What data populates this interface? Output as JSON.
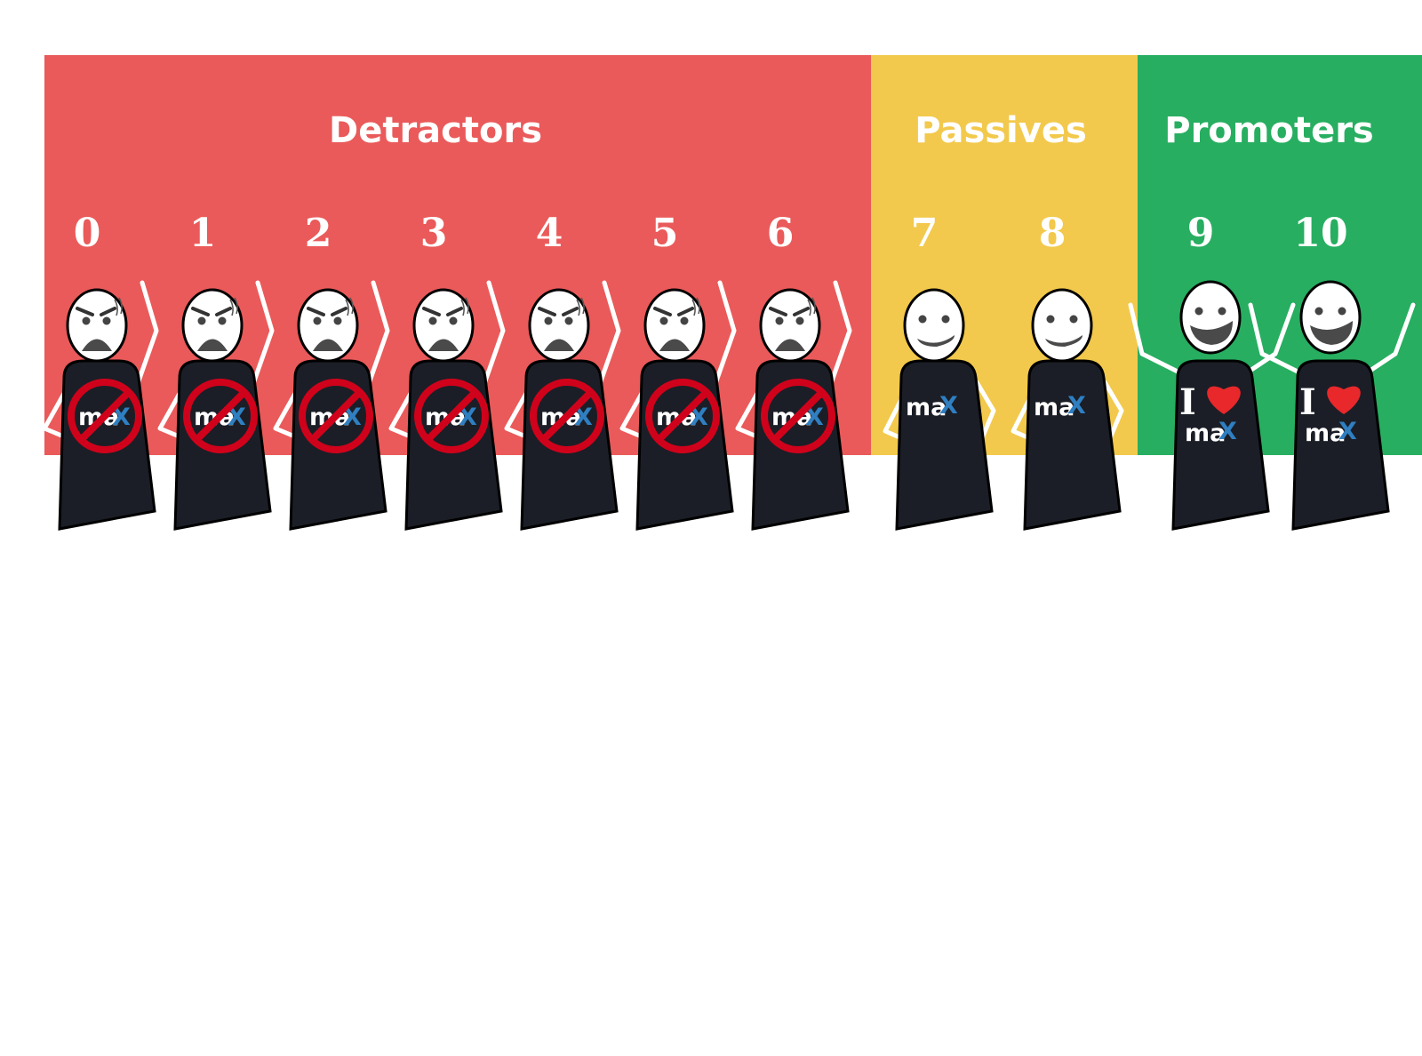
{
  "sections": [
    {
      "label": "Detractors",
      "color": "#ea5a5a",
      "scores": [
        "0",
        "1",
        "2",
        "3",
        "4",
        "5",
        "6"
      ],
      "mood": "angry",
      "shirt": "no-max"
    },
    {
      "label": "Passives",
      "color": "#f2c94c",
      "scores": [
        "7",
        "8"
      ],
      "mood": "neutral",
      "shirt": "max"
    },
    {
      "label": "Promoters",
      "color": "#27ae60",
      "scores": [
        "9",
        "10"
      ],
      "mood": "happy",
      "shirt": "i-love-max"
    }
  ],
  "shirt_logo": {
    "brand": "ma",
    "accent": "X",
    "love_prefix": "I"
  },
  "colors": {
    "figure": "#1b1e26",
    "face": "#ffffff",
    "ban": "#d0021b",
    "heart": "#e8282b",
    "accent_x": "#2f7fc1"
  }
}
